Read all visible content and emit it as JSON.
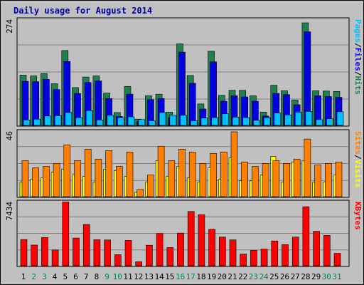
{
  "chart_data": [
    {
      "type": "bar",
      "title": "Daily usage for August 2014",
      "categories": [
        "1",
        "2",
        "3",
        "4",
        "5",
        "6",
        "7",
        "8",
        "9",
        "10",
        "11",
        "12",
        "13",
        "14",
        "15",
        "16",
        "17",
        "18",
        "19",
        "20",
        "21",
        "22",
        "23",
        "24",
        "25",
        "26",
        "27",
        "28",
        "29",
        "30",
        "31"
      ],
      "weekend_days": [
        "2",
        "3",
        "9",
        "10",
        "16",
        "17",
        "23",
        "24",
        "30",
        "31"
      ],
      "y_max_label": "274",
      "ylim": [
        0,
        274
      ],
      "right_label": [
        "Pages",
        "/",
        "Files",
        "/",
        "Hits"
      ],
      "series": [
        {
          "name": "Hits",
          "color": "#208050",
          "values": [
            129,
            127,
            133,
            107,
            192,
            97,
            124,
            127,
            83,
            33,
            100,
            16,
            76,
            80,
            34,
            209,
            128,
            55,
            190,
            77,
            90,
            90,
            76,
            34,
            103,
            89,
            65,
            263,
            89,
            88,
            87
          ]
        },
        {
          "name": "Files",
          "color": "#0000e0",
          "values": [
            113,
            112,
            118,
            92,
            164,
            82,
            110,
            114,
            69,
            23,
            80,
            10,
            66,
            69,
            20,
            188,
            108,
            42,
            163,
            62,
            76,
            73,
            62,
            24,
            82,
            79,
            53,
            240,
            76,
            74,
            72
          ]
        },
        {
          "name": "Pages",
          "color": "#00c0ff",
          "values": [
            14,
            16,
            24,
            25,
            33,
            20,
            38,
            14,
            26,
            20,
            22,
            15,
            12,
            33,
            26,
            26,
            12,
            19,
            20,
            30,
            21,
            20,
            13,
            20,
            32,
            27,
            34,
            36,
            15,
            17,
            35
          ]
        }
      ]
    },
    {
      "type": "bar",
      "y_max_label": "46",
      "ylim": [
        0,
        46
      ],
      "right_label": [
        "Sites",
        "/",
        "Visits"
      ],
      "series": [
        {
          "name": "Visits",
          "color": "#ffff00",
          "values": [
            10,
            12,
            13,
            17,
            19,
            15,
            14,
            10,
            19,
            18,
            14,
            3,
            10,
            25,
            14,
            21,
            13,
            10,
            20,
            12,
            27,
            11,
            11,
            15,
            28,
            10,
            24,
            25,
            10,
            10,
            15
          ]
        },
        {
          "name": "Sites",
          "color": "#ff8000",
          "values": [
            25,
            20,
            21,
            23,
            36,
            25,
            33,
            26,
            32,
            21,
            31,
            5,
            15,
            35,
            25,
            33,
            31,
            23,
            30,
            31,
            45,
            24,
            21,
            23,
            25,
            23,
            26,
            40,
            22,
            23,
            24
          ]
        }
      ]
    },
    {
      "type": "bar",
      "y_max_label": "7434",
      "ylim": [
        0,
        7434
      ],
      "right_label": [
        "KBytes"
      ],
      "series": [
        {
          "name": "KBytes",
          "color": "#ff0000",
          "values": [
            3004,
            2372,
            3235,
            1810,
            7310,
            3178,
            4738,
            2983,
            2957,
            1276,
            2901,
            461,
            2354,
            3691,
            2085,
            3744,
            6227,
            5855,
            4180,
            3288,
            2967,
            1343,
            1760,
            1904,
            2846,
            2424,
            3291,
            6771,
            3952,
            3477,
            1425
          ]
        }
      ]
    }
  ]
}
